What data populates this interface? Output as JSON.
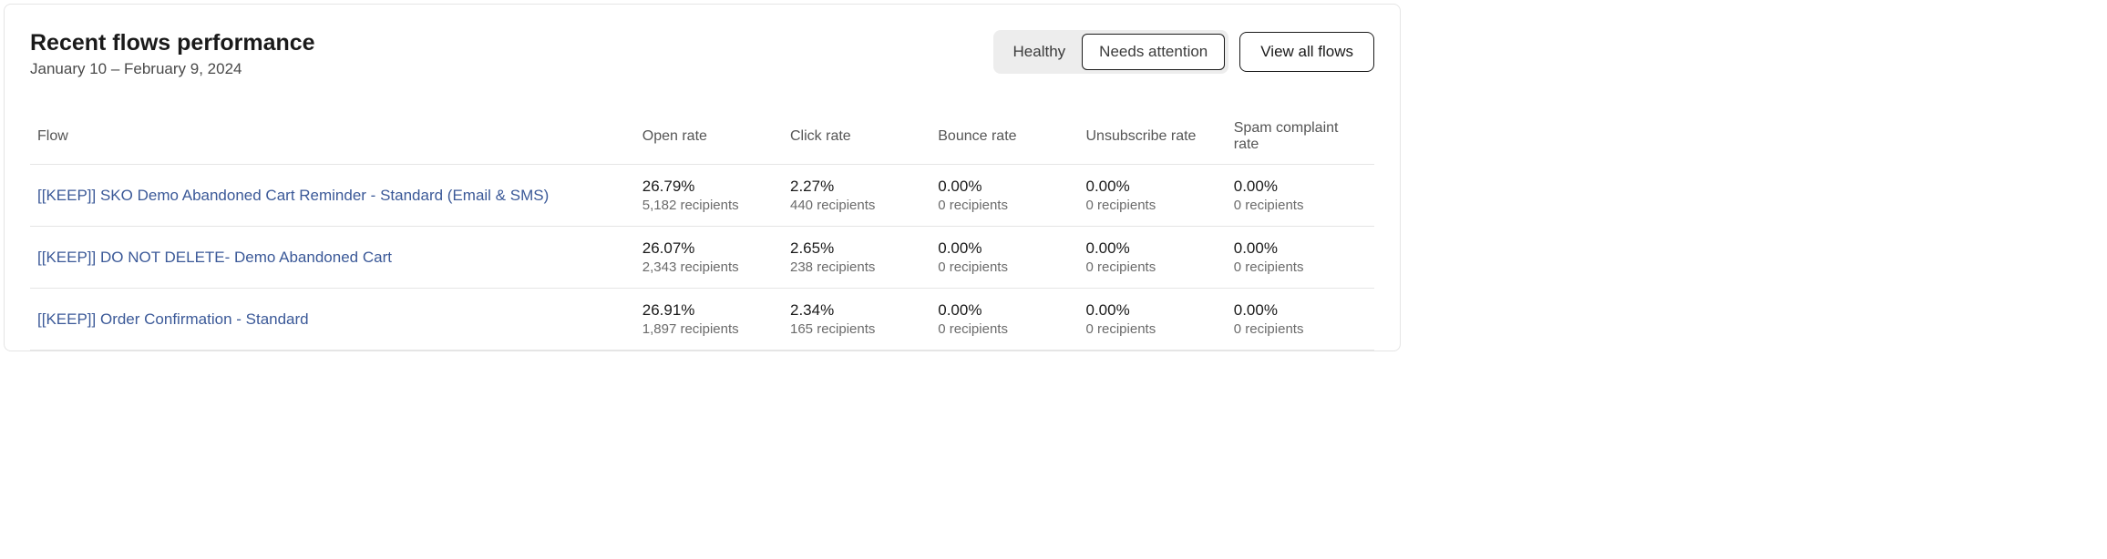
{
  "header": {
    "title": "Recent flows performance",
    "date_range": "January 10 – February 9, 2024"
  },
  "controls": {
    "segments": [
      {
        "label": "Healthy",
        "active": false
      },
      {
        "label": "Needs attention",
        "active": true
      }
    ],
    "view_all_label": "View all flows"
  },
  "table": {
    "columns": [
      "Flow",
      "Open rate",
      "Click rate",
      "Bounce rate",
      "Unsubscribe rate",
      "Spam complaint rate"
    ],
    "rows": [
      {
        "name": "[[KEEP]] SKO Demo Abandoned Cart Reminder - Standard (Email & SMS)",
        "metrics": [
          {
            "value": "26.79%",
            "sub": "5,182 recipients"
          },
          {
            "value": "2.27%",
            "sub": "440 recipients"
          },
          {
            "value": "0.00%",
            "sub": "0 recipients"
          },
          {
            "value": "0.00%",
            "sub": "0 recipients"
          },
          {
            "value": "0.00%",
            "sub": "0 recipients"
          }
        ]
      },
      {
        "name": "[[KEEP]] DO NOT DELETE- Demo Abandoned Cart",
        "metrics": [
          {
            "value": "26.07%",
            "sub": "2,343 recipients"
          },
          {
            "value": "2.65%",
            "sub": "238 recipients"
          },
          {
            "value": "0.00%",
            "sub": "0 recipients"
          },
          {
            "value": "0.00%",
            "sub": "0 recipients"
          },
          {
            "value": "0.00%",
            "sub": "0 recipients"
          }
        ]
      },
      {
        "name": "[[KEEP]] Order Confirmation - Standard",
        "metrics": [
          {
            "value": "26.91%",
            "sub": "1,897 recipients"
          },
          {
            "value": "2.34%",
            "sub": "165 recipients"
          },
          {
            "value": "0.00%",
            "sub": "0 recipients"
          },
          {
            "value": "0.00%",
            "sub": "0 recipients"
          },
          {
            "value": "0.00%",
            "sub": "0 recipients"
          }
        ]
      }
    ]
  },
  "styles": {
    "link_color": "#3b5998",
    "border_color": "#e5e5e5",
    "muted_text": "#6b6b6b",
    "seg_bg": "#ededed"
  }
}
